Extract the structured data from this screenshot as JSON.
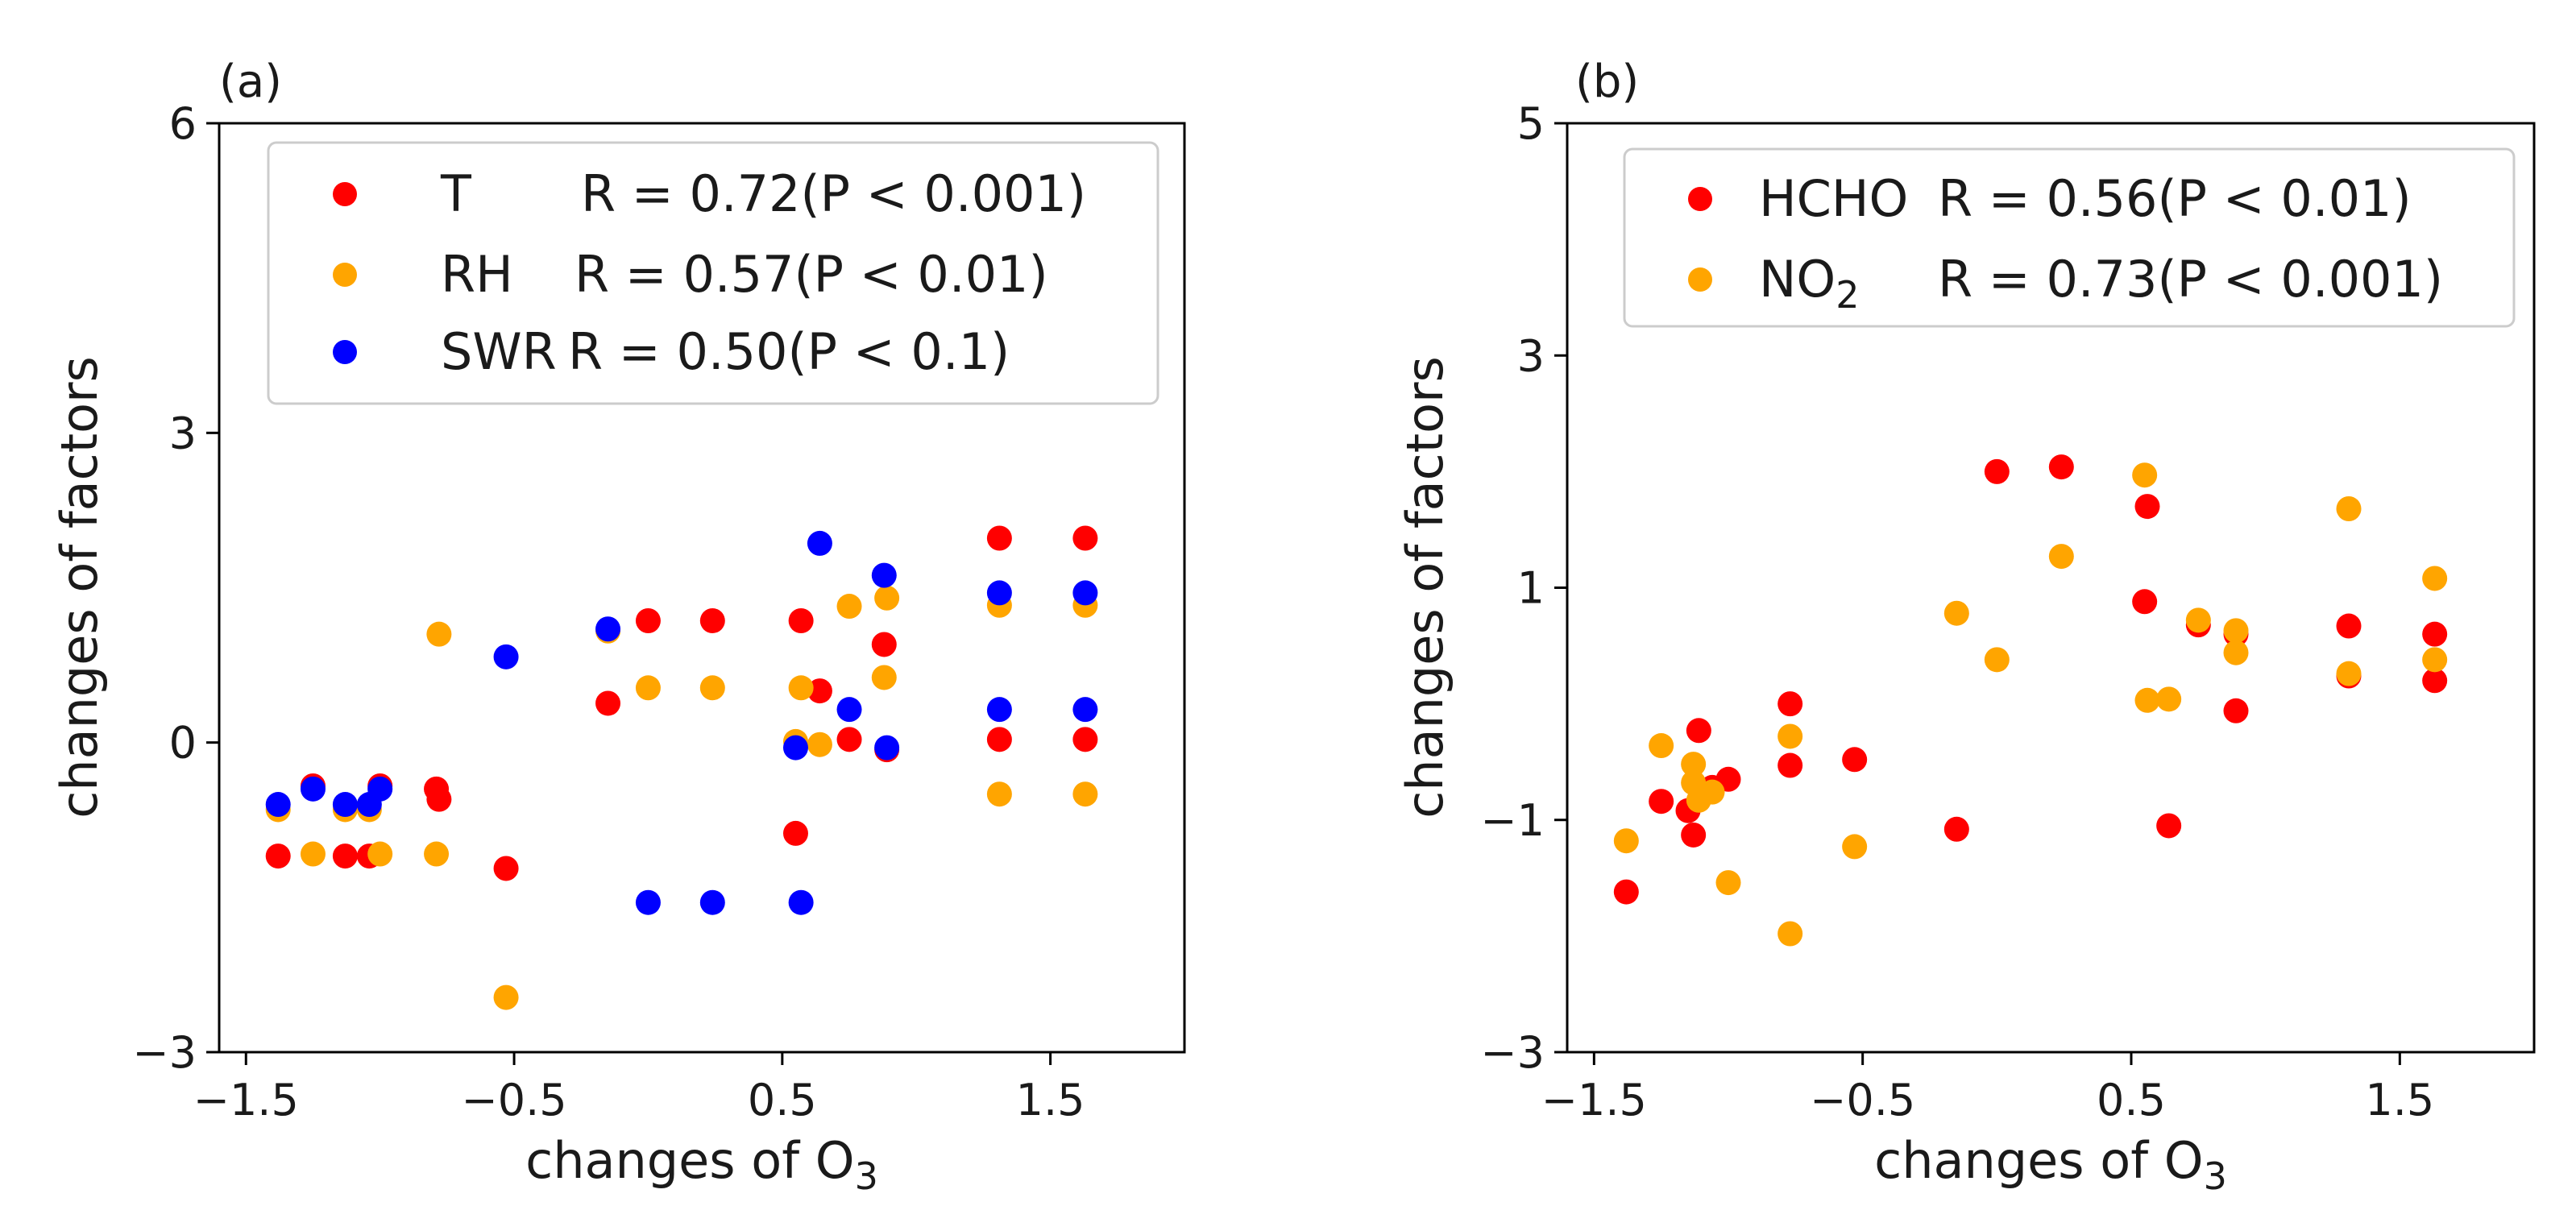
{
  "chart_data": [
    {
      "type": "scatter",
      "panel_label": "(a)",
      "xlabel": "changes of O",
      "xlabel_sub": "3",
      "ylabel": "changes of factors",
      "xlim": [
        -1.6,
        2.0
      ],
      "ylim": [
        -3,
        6
      ],
      "xticks": [
        -1.5,
        -0.5,
        0.5,
        1.5
      ],
      "xtick_labels": [
        "−1.5",
        "−0.5",
        "0.5",
        "1.5"
      ],
      "yticks": [
        -3,
        0,
        3,
        6
      ],
      "ytick_labels": [
        "−3",
        "0",
        "3",
        "6"
      ],
      "legend_position": "top-right",
      "series": [
        {
          "name": "T",
          "r_text": "R = 0.72(P < 0.001)",
          "color": "#ff0000",
          "x": [
            -1.38,
            -1.25,
            -1.13,
            -1.04,
            -1.0,
            -0.79,
            -0.78,
            -0.53,
            -0.15,
            0.0,
            0.24,
            0.55,
            0.57,
            0.64,
            0.75,
            0.88,
            0.89,
            1.31,
            1.31,
            1.63,
            1.63
          ],
          "y": [
            -1.1,
            -0.42,
            -1.1,
            -1.1,
            -0.42,
            -0.45,
            -0.55,
            -1.22,
            0.38,
            1.18,
            1.18,
            -0.88,
            1.18,
            0.5,
            0.03,
            0.95,
            -0.07,
            1.98,
            0.03,
            1.98,
            0.03
          ]
        },
        {
          "name": "RH",
          "r_text": "R = 0.57(P < 0.01)",
          "color": "#ffa500",
          "x": [
            -1.38,
            -1.25,
            -1.13,
            -1.04,
            -1.0,
            -0.79,
            -0.78,
            -0.53,
            -0.15,
            0.0,
            0.24,
            0.55,
            0.57,
            0.64,
            0.75,
            0.88,
            0.89,
            1.31,
            1.31,
            1.63,
            1.63
          ],
          "y": [
            -0.65,
            -1.08,
            -0.65,
            -0.65,
            -1.08,
            -1.08,
            1.05,
            -2.47,
            1.08,
            0.53,
            0.53,
            0.01,
            0.53,
            -0.02,
            1.32,
            0.63,
            1.4,
            1.33,
            -0.5,
            1.33,
            -0.5
          ]
        },
        {
          "name": "SWR",
          "r_text": "R = 0.50(P < 0.1)",
          "color": "#0000ff",
          "x": [
            -1.38,
            -1.25,
            -1.13,
            -1.04,
            -1.0,
            -0.53,
            -0.15,
            0.0,
            0.24,
            0.55,
            0.57,
            0.64,
            0.75,
            0.88,
            0.89,
            1.31,
            1.31,
            1.63,
            1.63
          ],
          "y": [
            -0.6,
            -0.45,
            -0.6,
            -0.6,
            -0.45,
            0.83,
            1.1,
            -1.55,
            -1.55,
            -0.05,
            -1.55,
            1.93,
            0.32,
            1.62,
            -0.05,
            1.45,
            0.32,
            1.45,
            0.32
          ]
        }
      ]
    },
    {
      "type": "scatter",
      "panel_label": "(b)",
      "xlabel": "changes of O",
      "xlabel_sub": "3",
      "ylabel": "changes of factors",
      "xlim": [
        -1.6,
        2.0
      ],
      "ylim": [
        -3,
        5
      ],
      "xticks": [
        -1.5,
        -0.5,
        0.5,
        1.5
      ],
      "xtick_labels": [
        "−1.5",
        "−0.5",
        "0.5",
        "1.5"
      ],
      "yticks": [
        -3,
        -1,
        1,
        3,
        5
      ],
      "ytick_labels": [
        "−3",
        "−1",
        "1",
        "3",
        "5"
      ],
      "legend_position": "top-right",
      "series": [
        {
          "name": "HCHO",
          "name_sub": "",
          "r_text": "R = 0.56(P < 0.01)",
          "color": "#ff0000",
          "x": [
            -1.38,
            -1.25,
            -1.15,
            -1.13,
            -1.11,
            -1.06,
            -1.0,
            -0.77,
            -0.77,
            -0.53,
            -0.15,
            0.0,
            0.24,
            0.55,
            0.56,
            0.64,
            0.75,
            0.89,
            0.89,
            1.31,
            1.31,
            1.63,
            1.63
          ],
          "y": [
            -1.62,
            -0.84,
            -0.92,
            -1.13,
            -0.23,
            -0.72,
            -0.65,
            -0.53,
            0.0,
            -0.48,
            -1.08,
            2.0,
            2.04,
            0.88,
            1.7,
            -1.05,
            0.68,
            0.6,
            -0.06,
            0.67,
            0.24,
            0.6,
            0.2
          ]
        },
        {
          "name": "NO",
          "name_sub": "2",
          "r_text": "R = 0.73(P < 0.001)",
          "color": "#ffa500",
          "x": [
            -1.38,
            -1.25,
            -1.13,
            -1.13,
            -1.11,
            -1.06,
            -1.0,
            -0.77,
            -0.77,
            -0.53,
            -0.15,
            0.0,
            0.24,
            0.55,
            0.56,
            0.64,
            0.75,
            0.89,
            0.89,
            1.31,
            1.31,
            1.63,
            1.63
          ],
          "y": [
            -1.18,
            -0.36,
            -0.52,
            -0.68,
            -0.83,
            -0.76,
            -1.54,
            -0.28,
            -1.98,
            -1.23,
            0.78,
            0.38,
            1.27,
            1.97,
            0.03,
            0.04,
            0.72,
            0.63,
            0.44,
            1.68,
            0.26,
            1.08,
            0.38
          ]
        }
      ]
    }
  ]
}
